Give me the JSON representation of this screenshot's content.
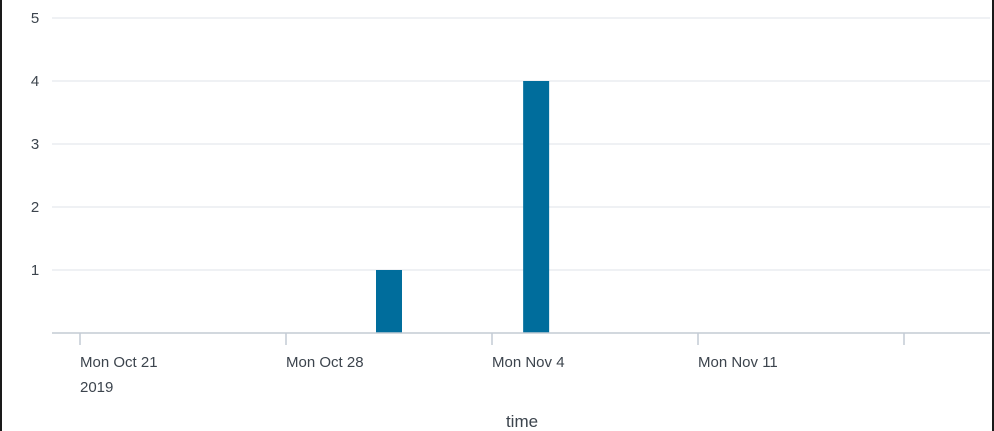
{
  "chart_data": {
    "type": "bar",
    "xlabel": "time",
    "ylabel": "",
    "ylim": [
      0,
      5
    ],
    "y_ticks": [
      "1",
      "2",
      "3",
      "4",
      "5"
    ],
    "x_ticks": [
      {
        "line1": "Mon Oct 21",
        "line2": "2019",
        "date": "2019-10-21"
      },
      {
        "line1": "Mon Oct 28",
        "line2": "",
        "date": "2019-10-28"
      },
      {
        "line1": "Mon Nov 4",
        "line2": "",
        "date": "2019-11-04"
      },
      {
        "line1": "Mon Nov 11",
        "line2": "",
        "date": "2019-11-11"
      }
    ],
    "bars": [
      {
        "date": "2019-10-31",
        "value": 1
      },
      {
        "date": "2019-11-05",
        "value": 4
      }
    ],
    "bar_color": "#006d9c",
    "grid": true
  }
}
